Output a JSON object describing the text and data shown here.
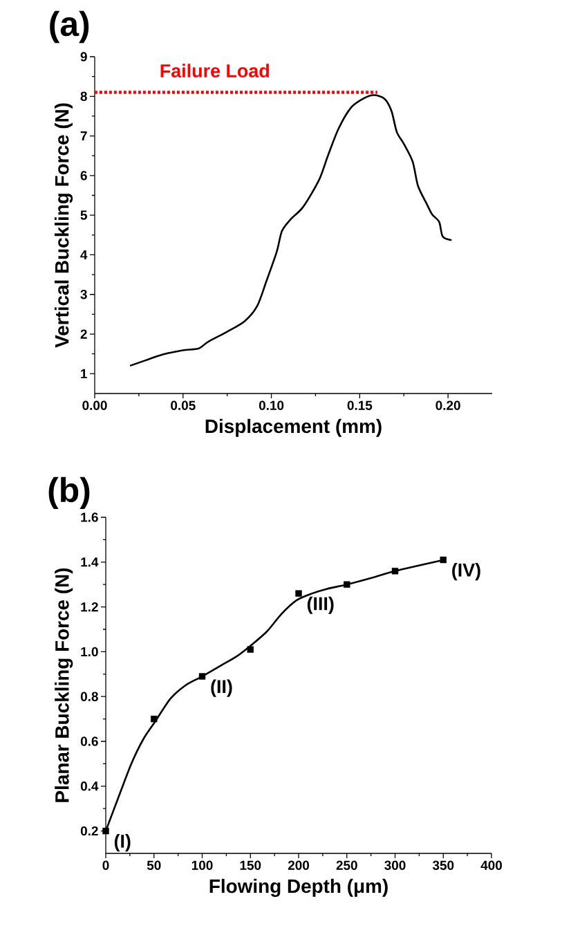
{
  "chart_data": [
    {
      "type": "line",
      "title": "(a)",
      "xlabel": "Displacement (mm)",
      "ylabel": "Vertical Buckling Force (N)",
      "xlim": [
        0,
        0.225
      ],
      "ylim": [
        0.5,
        9
      ],
      "xticks": [
        {
          "value": 0,
          "label": "0.00"
        },
        {
          "value": 0.05,
          "label": "0.05"
        },
        {
          "value": 0.1,
          "label": "0.10"
        },
        {
          "value": 0.15,
          "label": "0.15"
        },
        {
          "value": 0.2,
          "label": "0.20"
        }
      ],
      "yticks": [
        1,
        2,
        3,
        4,
        5,
        6,
        7,
        8,
        9
      ],
      "series": [
        {
          "color": "#000000",
          "line_style": "solid",
          "x": [
            0.02,
            0.029,
            0.039,
            0.05,
            0.059,
            0.064,
            0.075,
            0.085,
            0.092,
            0.097,
            0.103,
            0.106,
            0.111,
            0.118,
            0.127,
            0.132,
            0.138,
            0.145,
            0.152,
            0.158,
            0.164,
            0.168,
            0.171,
            0.175,
            0.18,
            0.183,
            0.188,
            0.191,
            0.195,
            0.197,
            0.202
          ],
          "values": [
            1.2,
            1.34,
            1.49,
            1.59,
            1.64,
            1.8,
            2.06,
            2.33,
            2.71,
            3.31,
            4.07,
            4.6,
            4.9,
            5.21,
            5.89,
            6.5,
            7.18,
            7.71,
            7.94,
            8.03,
            7.94,
            7.63,
            7.1,
            6.8,
            6.35,
            5.74,
            5.28,
            5.02,
            4.83,
            4.46,
            4.37
          ]
        },
        {
          "name": "Failure Load",
          "color": "#ff0000",
          "line_style": "dotted",
          "x": [
            0,
            0.16
          ],
          "values": [
            8.1,
            8.1
          ]
        }
      ]
    },
    {
      "type": "scatter",
      "title": "(b)",
      "xlabel": "Flowing Depth (μm)",
      "ylabel": "Planar Buckling Force (N)",
      "xlim": [
        0,
        400
      ],
      "ylim": [
        0.1,
        1.6
      ],
      "xticks": [
        0,
        50,
        100,
        150,
        200,
        250,
        300,
        350,
        400
      ],
      "yticks": [
        0.2,
        0.4,
        0.6,
        0.8,
        {
          "value": 1.0,
          "label": "1.0"
        },
        1.2,
        1.4,
        1.6
      ],
      "x": [
        0,
        50,
        100,
        150,
        200,
        250,
        300,
        350
      ],
      "series": [
        {
          "type": "scatter",
          "marker": "square",
          "color": "#000000",
          "values": [
            0.2,
            0.7,
            0.89,
            1.01,
            1.26,
            1.3,
            1.36,
            1.41
          ]
        },
        {
          "type": "line",
          "line_style": "solid",
          "color": "#000000",
          "x": [
            0,
            14,
            26.5,
            39,
            51.5,
            67,
            82.7,
            100,
            120,
            136,
            151,
            167,
            182.5,
            198,
            214,
            229,
            250,
            276,
            300,
            351
          ],
          "values": [
            0.2,
            0.36,
            0.5,
            0.61,
            0.69,
            0.79,
            0.85,
            0.89,
            0.94,
            0.98,
            1.03,
            1.09,
            1.17,
            1.23,
            1.26,
            1.28,
            1.3,
            1.33,
            1.36,
            1.41
          ]
        }
      ],
      "annotations": [
        {
          "text": "(I)",
          "x": 0,
          "y": 0.2
        },
        {
          "text": "(II)",
          "x": 100,
          "y": 0.89
        },
        {
          "text": "(III)",
          "x": 200,
          "y": 1.26
        },
        {
          "text": "(IV)",
          "x": 350,
          "y": 1.41
        }
      ]
    }
  ]
}
